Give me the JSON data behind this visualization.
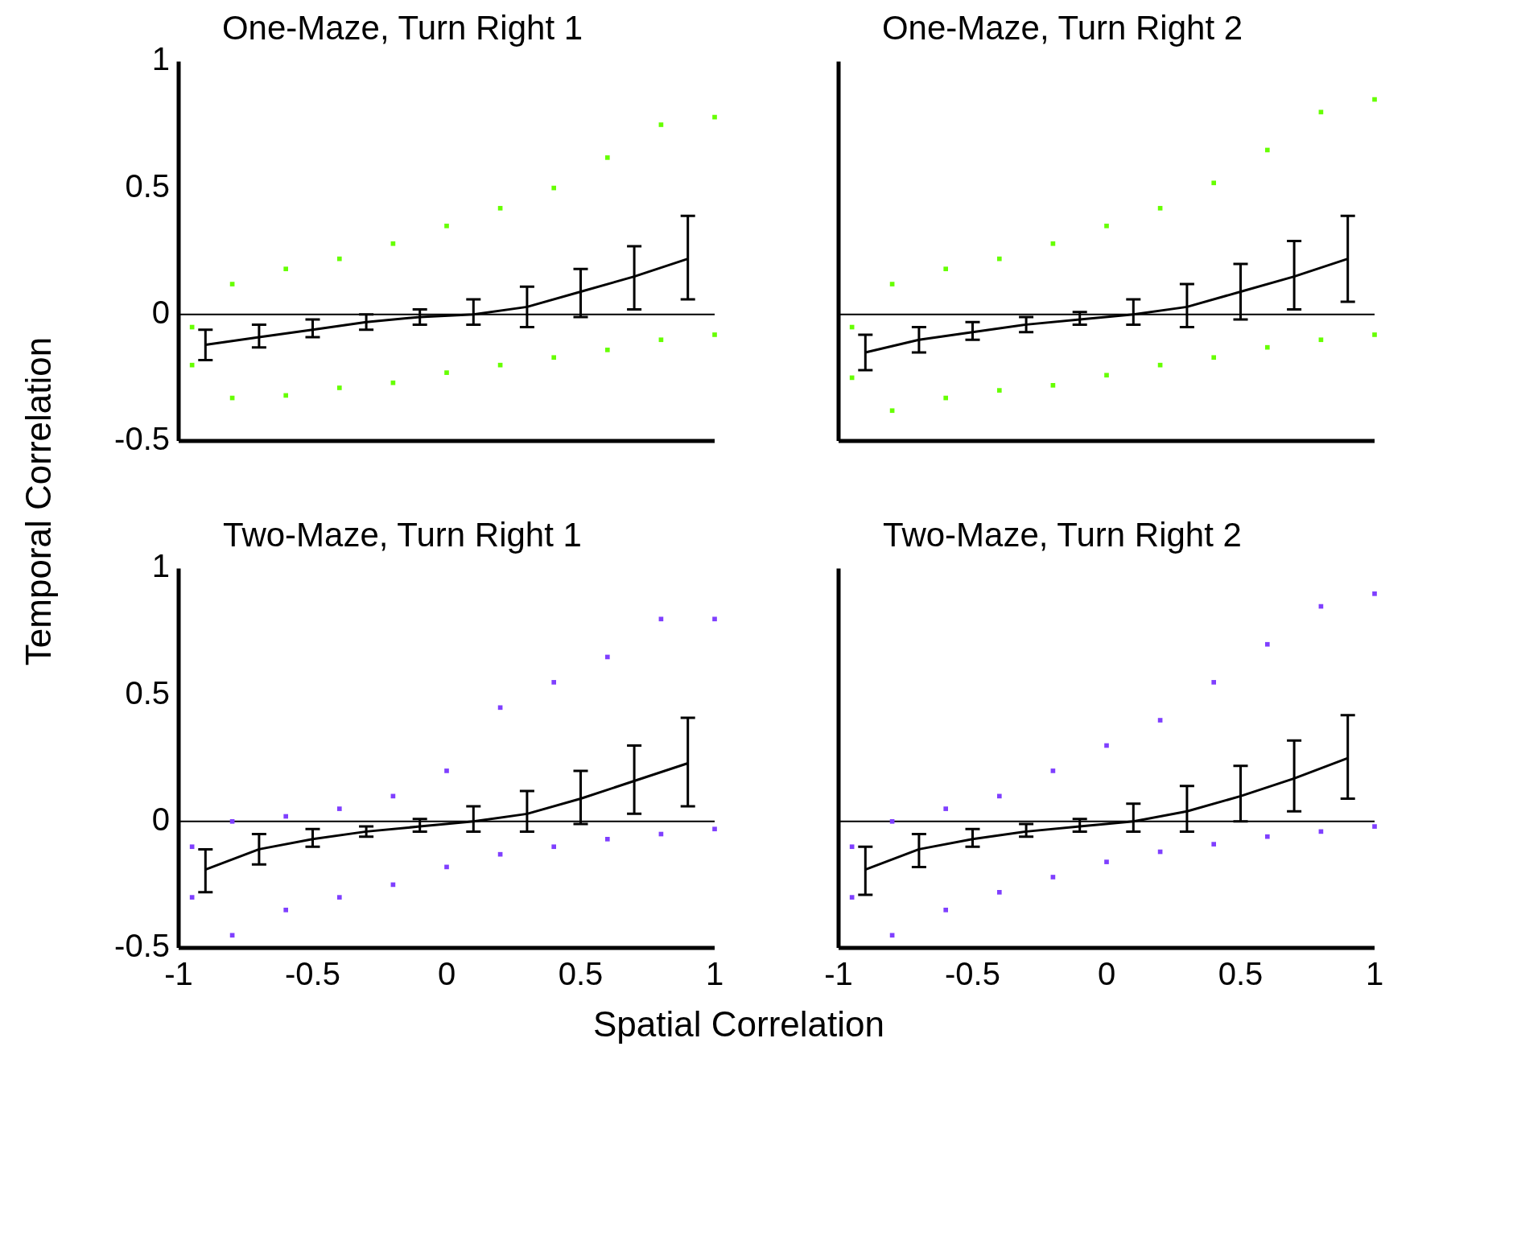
{
  "chart_data": [
    {
      "type": "scatter",
      "title": "One-Maze, Turn Right 1",
      "ylabel": "Temporal Correlation",
      "xlim": [
        -1,
        1
      ],
      "ylim": [
        -0.5,
        1
      ],
      "xticks": [
        -1,
        -0.5,
        0,
        0.5,
        1
      ],
      "yticks": [
        -0.5,
        0,
        0.5,
        1
      ],
      "tick_labels": "y",
      "grid": false,
      "legend": false,
      "ref_lines": [
        {
          "axis": "y",
          "value": 0,
          "color": "#000000"
        }
      ],
      "series": [
        {
          "type": "scatter",
          "marker": "square",
          "color": "#66ff00",
          "x": [
            -0.95,
            -0.8,
            -0.6,
            -0.4,
            -0.2,
            0,
            0.2,
            0.4,
            0.6,
            0.8,
            1,
            -0.95,
            -0.8,
            -0.6,
            -0.4,
            -0.2,
            0,
            0.2,
            0.4,
            0.6,
            0.8,
            1
          ],
          "values": [
            -0.05,
            0.12,
            0.18,
            0.22,
            0.28,
            0.35,
            0.42,
            0.5,
            0.62,
            0.75,
            0.78,
            -0.2,
            -0.33,
            -0.32,
            -0.29,
            -0.27,
            -0.23,
            -0.2,
            -0.17,
            -0.14,
            -0.1,
            -0.08
          ]
        },
        {
          "type": "line",
          "marker": "none",
          "color": "#000000",
          "x": [
            -0.9,
            -0.7,
            -0.5,
            -0.3,
            -0.1,
            0.1,
            0.3,
            0.5,
            0.7,
            0.9
          ],
          "values": [
            -0.12,
            -0.09,
            -0.06,
            -0.03,
            -0.01,
            0,
            0.03,
            0.09,
            0.15,
            0.22
          ],
          "errors": [
            [
              -0.18,
              -0.06
            ],
            [
              -0.13,
              -0.04
            ],
            [
              -0.09,
              -0.02
            ],
            [
              -0.06,
              0
            ],
            [
              -0.04,
              0.02
            ],
            [
              -0.04,
              0.06
            ],
            [
              -0.05,
              0.11
            ],
            [
              -0.01,
              0.18
            ],
            [
              0.02,
              0.27
            ],
            [
              0.06,
              0.39
            ]
          ]
        }
      ]
    },
    {
      "type": "scatter",
      "title": "One-Maze, Turn Right 2",
      "xlim": [
        -1,
        1
      ],
      "ylim": [
        -0.5,
        1
      ],
      "xticks": [
        -1,
        -0.5,
        0,
        0.5,
        1
      ],
      "yticks": [
        -0.5,
        0,
        0.5,
        1
      ],
      "tick_labels": false,
      "grid": false,
      "legend": false,
      "ref_lines": [
        {
          "axis": "y",
          "value": 0,
          "color": "#000000"
        }
      ],
      "series": [
        {
          "type": "scatter",
          "marker": "square",
          "color": "#66ff00",
          "x": [
            -0.95,
            -0.8,
            -0.6,
            -0.4,
            -0.2,
            0,
            0.2,
            0.4,
            0.6,
            0.8,
            1,
            -0.95,
            -0.8,
            -0.6,
            -0.4,
            -0.2,
            0,
            0.2,
            0.4,
            0.6,
            0.8,
            1
          ],
          "values": [
            -0.05,
            0.12,
            0.18,
            0.22,
            0.28,
            0.35,
            0.42,
            0.52,
            0.65,
            0.8,
            0.85,
            -0.25,
            -0.38,
            -0.33,
            -0.3,
            -0.28,
            -0.24,
            -0.2,
            -0.17,
            -0.13,
            -0.1,
            -0.08
          ]
        },
        {
          "type": "line",
          "marker": "none",
          "color": "#000000",
          "x": [
            -0.9,
            -0.7,
            -0.5,
            -0.3,
            -0.1,
            0.1,
            0.3,
            0.5,
            0.7,
            0.9
          ],
          "values": [
            -0.15,
            -0.1,
            -0.07,
            -0.04,
            -0.02,
            0,
            0.03,
            0.09,
            0.15,
            0.22
          ],
          "errors": [
            [
              -0.22,
              -0.08
            ],
            [
              -0.15,
              -0.05
            ],
            [
              -0.1,
              -0.03
            ],
            [
              -0.07,
              -0.01
            ],
            [
              -0.04,
              0.01
            ],
            [
              -0.04,
              0.06
            ],
            [
              -0.05,
              0.12
            ],
            [
              -0.02,
              0.2
            ],
            [
              0.02,
              0.29
            ],
            [
              0.05,
              0.39
            ]
          ]
        }
      ]
    },
    {
      "type": "scatter",
      "title": "Two-Maze, Turn Right 1",
      "xlabel": "Spatial Correlation",
      "xlim": [
        -1,
        1
      ],
      "ylim": [
        -0.5,
        1
      ],
      "xticks": [
        -1,
        -0.5,
        0,
        0.5,
        1
      ],
      "yticks": [
        -0.5,
        0,
        0.5,
        1
      ],
      "grid": false,
      "legend": false,
      "ref_lines": [
        {
          "axis": "y",
          "value": 0,
          "color": "#000000"
        }
      ],
      "series": [
        {
          "type": "scatter",
          "marker": "square",
          "color": "#7f3fff",
          "x": [
            -0.95,
            -0.8,
            -0.6,
            -0.4,
            -0.2,
            0,
            0.2,
            0.4,
            0.6,
            0.8,
            1,
            -0.95,
            -0.8,
            -0.6,
            -0.4,
            -0.2,
            0,
            0.2,
            0.4,
            0.6,
            0.8,
            1
          ],
          "values": [
            -0.1,
            0.0,
            0.02,
            0.05,
            0.1,
            0.2,
            0.45,
            0.55,
            0.65,
            0.8,
            0.8,
            -0.3,
            -0.45,
            -0.35,
            -0.3,
            -0.25,
            -0.18,
            -0.13,
            -0.1,
            -0.07,
            -0.05,
            -0.03
          ]
        },
        {
          "type": "line",
          "marker": "none",
          "color": "#000000",
          "x": [
            -0.9,
            -0.7,
            -0.5,
            -0.3,
            -0.1,
            0.1,
            0.3,
            0.5,
            0.7,
            0.9
          ],
          "values": [
            -0.19,
            -0.11,
            -0.07,
            -0.04,
            -0.02,
            0,
            0.03,
            0.09,
            0.16,
            0.23
          ],
          "errors": [
            [
              -0.28,
              -0.11
            ],
            [
              -0.17,
              -0.05
            ],
            [
              -0.1,
              -0.03
            ],
            [
              -0.06,
              -0.02
            ],
            [
              -0.04,
              0.01
            ],
            [
              -0.04,
              0.06
            ],
            [
              -0.04,
              0.12
            ],
            [
              -0.01,
              0.2
            ],
            [
              0.03,
              0.3
            ],
            [
              0.06,
              0.41
            ]
          ]
        }
      ]
    },
    {
      "type": "scatter",
      "title": "Two-Maze, Turn Right 2",
      "xlim": [
        -1,
        1
      ],
      "ylim": [
        -0.5,
        1
      ],
      "xticks": [
        -1,
        -0.5,
        0,
        0.5,
        1
      ],
      "yticks": [
        -0.5,
        0,
        0.5,
        1
      ],
      "tick_labels": "x",
      "grid": false,
      "legend": false,
      "ref_lines": [
        {
          "axis": "y",
          "value": 0,
          "color": "#000000"
        }
      ],
      "series": [
        {
          "type": "scatter",
          "marker": "square",
          "color": "#7f3fff",
          "x": [
            -0.95,
            -0.8,
            -0.6,
            -0.4,
            -0.2,
            0,
            0.2,
            0.4,
            0.6,
            0.8,
            1,
            -0.95,
            -0.8,
            -0.6,
            -0.4,
            -0.2,
            0,
            0.2,
            0.4,
            0.6,
            0.8,
            1
          ],
          "values": [
            -0.1,
            0.0,
            0.05,
            0.1,
            0.2,
            0.3,
            0.4,
            0.55,
            0.7,
            0.85,
            0.9,
            -0.3,
            -0.45,
            -0.35,
            -0.28,
            -0.22,
            -0.16,
            -0.12,
            -0.09,
            -0.06,
            -0.04,
            -0.02
          ]
        },
        {
          "type": "line",
          "marker": "none",
          "color": "#000000",
          "x": [
            -0.9,
            -0.7,
            -0.5,
            -0.3,
            -0.1,
            0.1,
            0.3,
            0.5,
            0.7,
            0.9
          ],
          "values": [
            -0.19,
            -0.11,
            -0.07,
            -0.04,
            -0.02,
            0,
            0.04,
            0.1,
            0.17,
            0.25
          ],
          "errors": [
            [
              -0.29,
              -0.1
            ],
            [
              -0.18,
              -0.05
            ],
            [
              -0.1,
              -0.03
            ],
            [
              -0.06,
              -0.01
            ],
            [
              -0.04,
              0.01
            ],
            [
              -0.04,
              0.07
            ],
            [
              -0.04,
              0.14
            ],
            [
              0,
              0.22
            ],
            [
              0.04,
              0.32
            ],
            [
              0.09,
              0.42
            ]
          ]
        }
      ]
    }
  ]
}
